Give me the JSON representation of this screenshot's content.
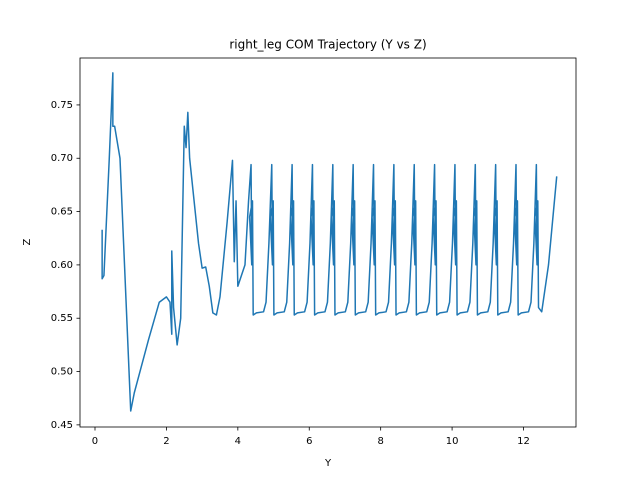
{
  "chart_data": {
    "type": "line",
    "title": "right_leg COM Trajectory (Y vs Z)",
    "x_label": "Y",
    "y_label": "Z",
    "color": "#1f77b4",
    "x": [
      0.2,
      0.2,
      0.25,
      0.4,
      0.5,
      0.5,
      0.55,
      0.7,
      1.0,
      1.1,
      1.5,
      1.8,
      2.0,
      2.1,
      2.15,
      2.15,
      2.2,
      2.3,
      2.4,
      2.5,
      2.55,
      2.6,
      2.65,
      2.9,
      3.0,
      3.1,
      3.2,
      3.3,
      3.4,
      3.5,
      3.7,
      3.85,
      3.9,
      3.95,
      4.0,
      4.2,
      4.3,
      4.37,
      4.39,
      4.33,
      4.41,
      4.43,
      4.52,
      4.72,
      4.79,
      4.87,
      4.95,
      4.97,
      4.91,
      4.99,
      5.01,
      5.1,
      5.3,
      5.37,
      5.45,
      5.52,
      5.54,
      5.48,
      5.56,
      5.58,
      5.67,
      5.87,
      5.94,
      6.02,
      6.09,
      6.11,
      6.05,
      6.13,
      6.15,
      6.24,
      6.44,
      6.51,
      6.59,
      6.66,
      6.68,
      6.62,
      6.7,
      6.72,
      6.81,
      7.01,
      7.08,
      7.16,
      7.23,
      7.25,
      7.19,
      7.27,
      7.29,
      7.38,
      7.58,
      7.65,
      7.73,
      7.8,
      7.82,
      7.76,
      7.84,
      7.86,
      7.95,
      8.15,
      8.22,
      8.3,
      8.37,
      8.39,
      8.33,
      8.41,
      8.43,
      8.52,
      8.72,
      8.79,
      8.87,
      8.94,
      8.96,
      8.9,
      8.98,
      9.0,
      9.09,
      9.29,
      9.36,
      9.44,
      9.51,
      9.53,
      9.47,
      9.55,
      9.57,
      9.66,
      9.86,
      9.93,
      10.01,
      10.08,
      10.1,
      10.04,
      10.12,
      10.14,
      10.23,
      10.43,
      10.5,
      10.58,
      10.65,
      10.67,
      10.61,
      10.69,
      10.71,
      10.8,
      11.0,
      11.07,
      11.15,
      11.22,
      11.24,
      11.18,
      11.26,
      11.28,
      11.37,
      11.57,
      11.64,
      11.72,
      11.79,
      11.81,
      11.75,
      11.83,
      11.85,
      11.94,
      12.14,
      12.21,
      12.29,
      12.36,
      12.38,
      12.32,
      12.4,
      12.42,
      12.51,
      12.7,
      12.93
    ],
    "values": [
      0.633,
      0.587,
      0.59,
      0.7,
      0.78,
      0.73,
      0.73,
      0.7,
      0.463,
      0.48,
      0.53,
      0.565,
      0.57,
      0.565,
      0.535,
      0.613,
      0.56,
      0.525,
      0.55,
      0.73,
      0.71,
      0.743,
      0.7,
      0.62,
      0.597,
      0.598,
      0.58,
      0.555,
      0.553,
      0.57,
      0.64,
      0.698,
      0.603,
      0.66,
      0.58,
      0.6,
      0.66,
      0.694,
      0.6,
      0.645,
      0.66,
      0.553,
      0.555,
      0.556,
      0.565,
      0.62,
      0.694,
      0.6,
      0.645,
      0.66,
      0.553,
      0.555,
      0.556,
      0.565,
      0.62,
      0.694,
      0.6,
      0.645,
      0.66,
      0.553,
      0.555,
      0.556,
      0.565,
      0.62,
      0.694,
      0.6,
      0.645,
      0.66,
      0.553,
      0.555,
      0.556,
      0.565,
      0.62,
      0.694,
      0.6,
      0.645,
      0.66,
      0.553,
      0.555,
      0.556,
      0.565,
      0.62,
      0.694,
      0.6,
      0.645,
      0.66,
      0.553,
      0.555,
      0.556,
      0.565,
      0.62,
      0.694,
      0.6,
      0.645,
      0.66,
      0.553,
      0.555,
      0.556,
      0.565,
      0.62,
      0.694,
      0.6,
      0.645,
      0.66,
      0.553,
      0.555,
      0.556,
      0.565,
      0.62,
      0.694,
      0.6,
      0.645,
      0.66,
      0.553,
      0.555,
      0.556,
      0.565,
      0.62,
      0.694,
      0.6,
      0.645,
      0.66,
      0.553,
      0.555,
      0.556,
      0.565,
      0.62,
      0.694,
      0.6,
      0.645,
      0.66,
      0.553,
      0.555,
      0.556,
      0.565,
      0.62,
      0.694,
      0.6,
      0.645,
      0.66,
      0.553,
      0.555,
      0.556,
      0.565,
      0.62,
      0.694,
      0.6,
      0.645,
      0.66,
      0.553,
      0.555,
      0.556,
      0.565,
      0.62,
      0.694,
      0.6,
      0.645,
      0.66,
      0.553,
      0.555,
      0.556,
      0.565,
      0.62,
      0.694,
      0.6,
      0.645,
      0.66,
      0.56,
      0.556,
      0.6,
      0.683
    ],
    "xlim": [
      -0.42,
      13.47
    ],
    "ylim": [
      0.448,
      0.794
    ],
    "xticks": [
      0,
      2,
      4,
      6,
      8,
      10,
      12
    ],
    "yticks": [
      {
        "value": 0.45,
        "label": "0.45"
      },
      {
        "value": 0.5,
        "label": "0.50"
      },
      {
        "value": 0.55,
        "label": "0.55"
      },
      {
        "value": 0.6,
        "label": "0.60"
      },
      {
        "value": 0.65,
        "label": "0.65"
      },
      {
        "value": 0.7,
        "label": "0.70"
      },
      {
        "value": 0.75,
        "label": "0.75"
      }
    ],
    "grid": false
  }
}
